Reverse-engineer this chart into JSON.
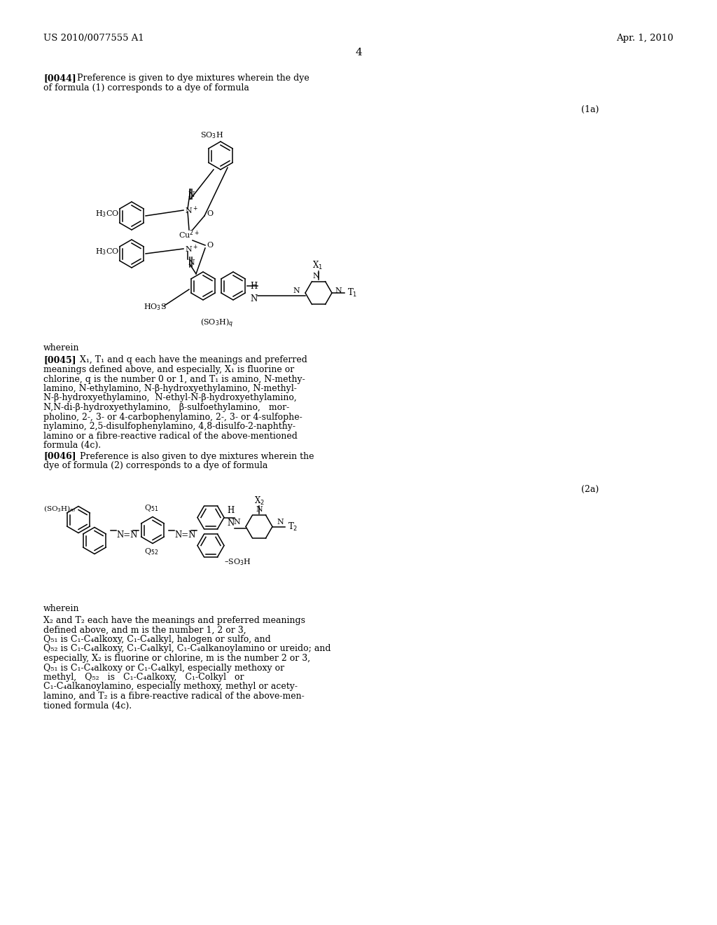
{
  "page_number": "4",
  "header_left": "US 2010/0077555 A1",
  "header_right": "Apr. 1, 2010",
  "background_color": "#ffffff",
  "text_color": "#000000",
  "formula_1a_label": "(1a)",
  "formula_2a_label": "(2a)",
  "figsize": [
    10.24,
    13.2
  ],
  "dpi": 100
}
